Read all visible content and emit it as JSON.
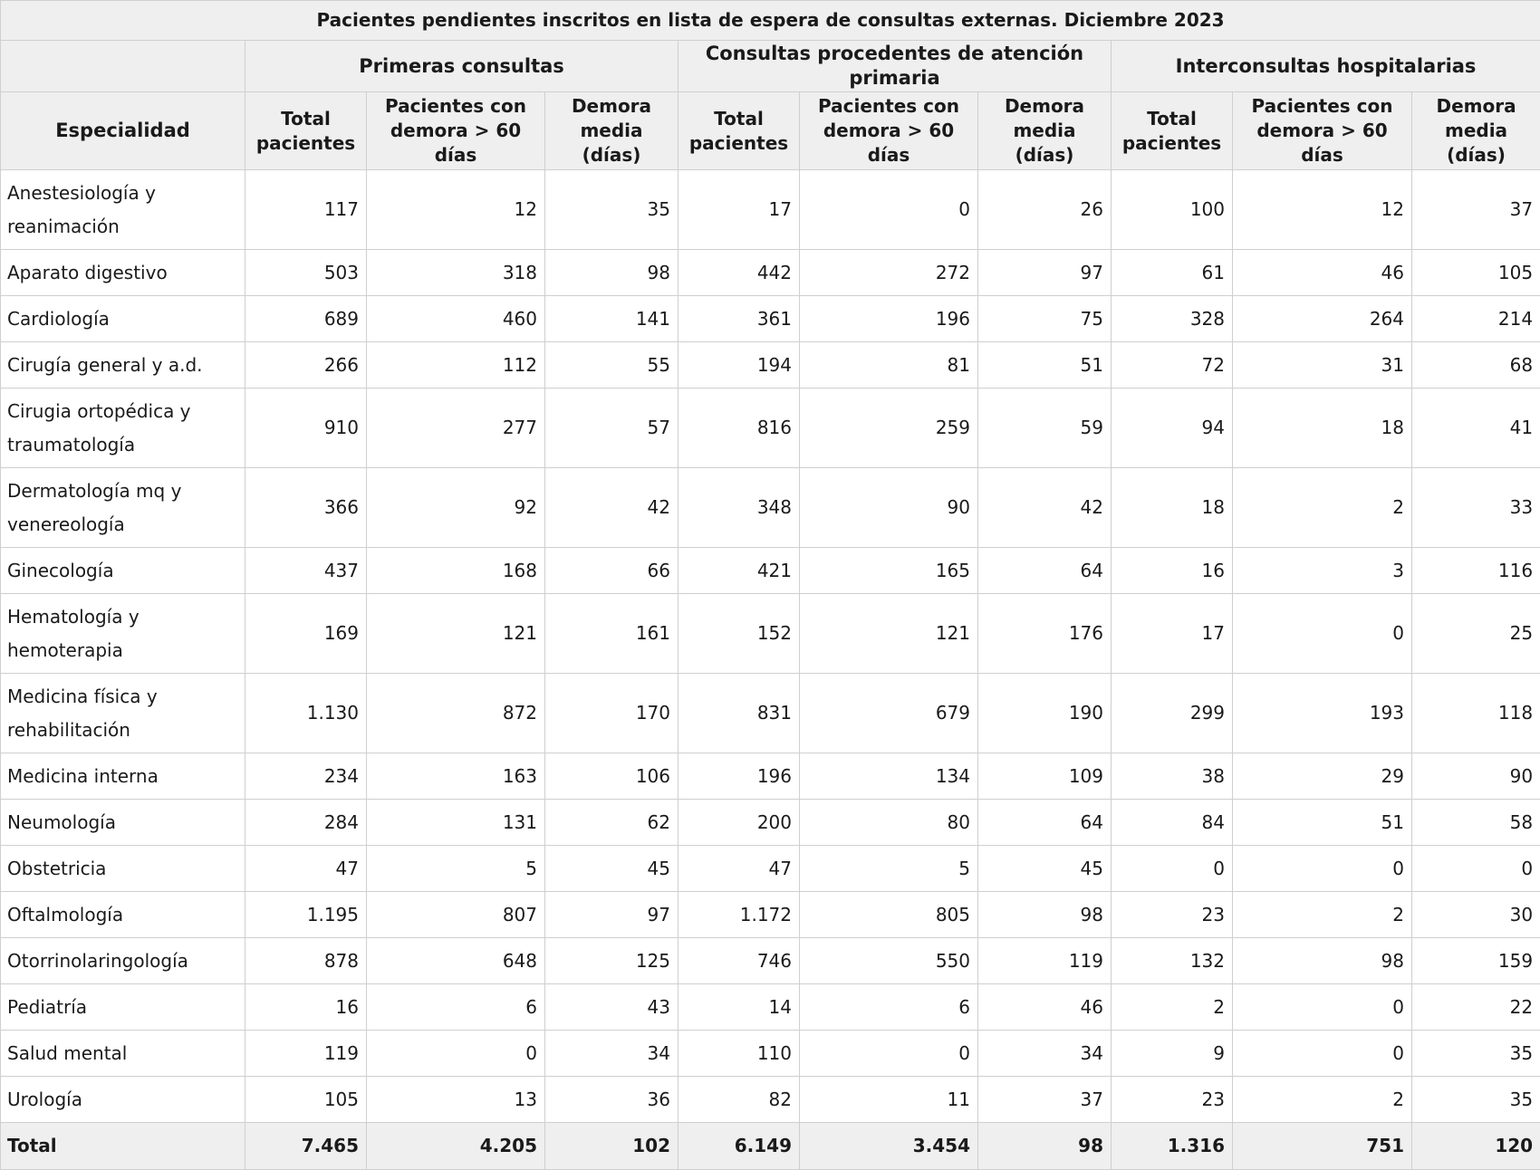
{
  "title": "Pacientes pendientes inscritos en lista de espera de consultas externas. Diciembre 2023",
  "groups": {
    "primeras": "Primeras consultas",
    "primaria": "Consultas procedentes de atención primaria",
    "inter": "Interconsultas hospitalarias"
  },
  "headers": {
    "especialidad": "Especialidad",
    "total": "Total pacientes",
    "demora60": "Pacientes con demora > 60 días",
    "media": "Demora media (días)"
  },
  "rows": [
    {
      "especialidad": "Anestesiología y reanimación",
      "v": [
        "117",
        "12",
        "35",
        "17",
        "0",
        "26",
        "100",
        "12",
        "37"
      ]
    },
    {
      "especialidad": "Aparato digestivo",
      "v": [
        "503",
        "318",
        "98",
        "442",
        "272",
        "97",
        "61",
        "46",
        "105"
      ]
    },
    {
      "especialidad": "Cardiología",
      "v": [
        "689",
        "460",
        "141",
        "361",
        "196",
        "75",
        "328",
        "264",
        "214"
      ]
    },
    {
      "especialidad": "Cirugía general y a.d.",
      "v": [
        "266",
        "112",
        "55",
        "194",
        "81",
        "51",
        "72",
        "31",
        "68"
      ]
    },
    {
      "especialidad": "Cirugia ortopédica y traumatología",
      "v": [
        "910",
        "277",
        "57",
        "816",
        "259",
        "59",
        "94",
        "18",
        "41"
      ]
    },
    {
      "especialidad": "Dermatología mq y venereología",
      "v": [
        "366",
        "92",
        "42",
        "348",
        "90",
        "42",
        "18",
        "2",
        "33"
      ]
    },
    {
      "especialidad": "Ginecología",
      "v": [
        "437",
        "168",
        "66",
        "421",
        "165",
        "64",
        "16",
        "3",
        "116"
      ]
    },
    {
      "especialidad": "Hematología y hemoterapia",
      "v": [
        "169",
        "121",
        "161",
        "152",
        "121",
        "176",
        "17",
        "0",
        "25"
      ]
    },
    {
      "especialidad": "Medicina física y rehabilitación",
      "v": [
        "1.130",
        "872",
        "170",
        "831",
        "679",
        "190",
        "299",
        "193",
        "118"
      ]
    },
    {
      "especialidad": "Medicina interna",
      "v": [
        "234",
        "163",
        "106",
        "196",
        "134",
        "109",
        "38",
        "29",
        "90"
      ]
    },
    {
      "especialidad": "Neumología",
      "v": [
        "284",
        "131",
        "62",
        "200",
        "80",
        "64",
        "84",
        "51",
        "58"
      ]
    },
    {
      "especialidad": "Obstetricia",
      "v": [
        "47",
        "5",
        "45",
        "47",
        "5",
        "45",
        "0",
        "0",
        "0"
      ]
    },
    {
      "especialidad": "Oftalmología",
      "v": [
        "1.195",
        "807",
        "97",
        "1.172",
        "805",
        "98",
        "23",
        "2",
        "30"
      ]
    },
    {
      "especialidad": "Otorrinolaringología",
      "v": [
        "878",
        "648",
        "125",
        "746",
        "550",
        "119",
        "132",
        "98",
        "159"
      ]
    },
    {
      "especialidad": "Pediatría",
      "v": [
        "16",
        "6",
        "43",
        "14",
        "6",
        "46",
        "2",
        "0",
        "22"
      ]
    },
    {
      "especialidad": "Salud mental",
      "v": [
        "119",
        "0",
        "34",
        "110",
        "0",
        "34",
        "9",
        "0",
        "35"
      ]
    },
    {
      "especialidad": "Urología",
      "v": [
        "105",
        "13",
        "36",
        "82",
        "11",
        "37",
        "23",
        "2",
        "35"
      ]
    }
  ],
  "total": {
    "especialidad": "Total",
    "v": [
      "7.465",
      "4.205",
      "102",
      "6.149",
      "3.454",
      "98",
      "1.316",
      "751",
      "120"
    ]
  }
}
